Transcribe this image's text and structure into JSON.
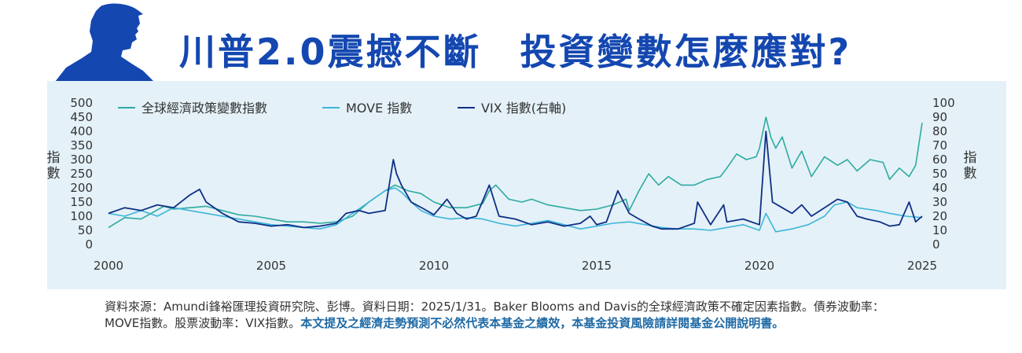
{
  "header": {
    "title": "川普2.0震撼不斷　投資變數怎麼應對?"
  },
  "footnote": {
    "source_text": "資料來源：Amundi鋒裕匯理投資研究院、彭博。資料日期：2025/1/31。Baker Blooms and Davis的全球經濟政策不確定因素指數。債券波動率：MOVE指數。股票波動率：VIX指數。",
    "disclaimer": "本文提及之經濟走勢預測不必然代表本基金之績效，本基金投資風險請詳閱基金公開說明書。"
  },
  "colors": {
    "title": "#1447b0",
    "panel": "#e4f1f8",
    "epu": "#2eaaa0",
    "move": "#3bb6d8",
    "vix": "#0f2f86",
    "highlight": "#1f6aa5"
  },
  "chart_data": {
    "type": "line",
    "x_range": [
      2000,
      2025
    ],
    "x_ticks": [
      "2000",
      "2005",
      "2010",
      "2015",
      "2020",
      "2025"
    ],
    "ylabel_left": "指數",
    "ylabel_right": "指數",
    "ylim_left": [
      0,
      500
    ],
    "ylim_right": [
      0,
      100
    ],
    "y_ticks_left": [
      "0",
      "50",
      "100",
      "150",
      "200",
      "250",
      "300",
      "350",
      "400",
      "450",
      "500"
    ],
    "y_ticks_right": [
      "0",
      "10",
      "20",
      "30",
      "40",
      "50",
      "60",
      "70",
      "80",
      "90",
      "100"
    ],
    "legend_position": "top",
    "grid": false,
    "series": [
      {
        "name": "全球經濟政策變數指數",
        "axis": "left",
        "color": "#2eaaa0",
        "x": [
          2000,
          2000.5,
          2001,
          2001.7,
          2002,
          2002.5,
          2003,
          2003.5,
          2004,
          2004.5,
          2005,
          2005.5,
          2006,
          2006.5,
          2007,
          2007.5,
          2008,
          2008.5,
          2008.8,
          2009.2,
          2009.6,
          2010,
          2010.5,
          2011,
          2011.5,
          2011.7,
          2011.9,
          2012.3,
          2012.7,
          2013,
          2013.5,
          2014,
          2014.5,
          2015,
          2015.5,
          2015.9,
          2016,
          2016.3,
          2016.6,
          2016.9,
          2017.2,
          2017.6,
          2018,
          2018.4,
          2018.8,
          2019,
          2019.3,
          2019.6,
          2019.9,
          2020,
          2020.2,
          2020.35,
          2020.5,
          2020.7,
          2021,
          2021.3,
          2021.6,
          2022,
          2022.4,
          2022.7,
          2023,
          2023.4,
          2023.8,
          2024,
          2024.3,
          2024.6,
          2024.8,
          2025
        ],
        "y": [
          60,
          95,
          90,
          135,
          125,
          130,
          135,
          120,
          105,
          100,
          90,
          80,
          80,
          75,
          80,
          100,
          150,
          190,
          210,
          190,
          180,
          150,
          130,
          130,
          145,
          190,
          210,
          160,
          150,
          160,
          140,
          130,
          120,
          125,
          140,
          160,
          120,
          190,
          250,
          210,
          240,
          210,
          210,
          230,
          240,
          270,
          320,
          300,
          310,
          340,
          450,
          380,
          340,
          380,
          270,
          330,
          240,
          310,
          280,
          300,
          260,
          300,
          290,
          230,
          270,
          240,
          280,
          430
        ]
      },
      {
        "name": "MOVE 指數",
        "axis": "left",
        "color": "#3bb6d8",
        "x": [
          2000,
          2000.5,
          2001,
          2001.5,
          2002,
          2002.5,
          2003,
          2003.5,
          2004,
          2004.5,
          2005,
          2005.5,
          2006,
          2006.5,
          2007,
          2007.5,
          2008,
          2008.5,
          2008.8,
          2009,
          2009.3,
          2009.6,
          2010,
          2010.5,
          2011,
          2011.5,
          2012,
          2012.5,
          2013,
          2013.5,
          2014,
          2014.5,
          2015,
          2015.5,
          2016,
          2016.5,
          2017,
          2017.5,
          2018,
          2018.5,
          2019,
          2019.5,
          2020,
          2020.2,
          2020.5,
          2021,
          2021.5,
          2022,
          2022.3,
          2022.7,
          2023,
          2023.3,
          2023.6,
          2024,
          2024.5,
          2025
        ],
        "y": [
          110,
          100,
          120,
          100,
          130,
          120,
          110,
          100,
          90,
          80,
          70,
          65,
          60,
          55,
          70,
          110,
          150,
          190,
          200,
          185,
          150,
          120,
          100,
          90,
          95,
          90,
          75,
          65,
          75,
          85,
          70,
          55,
          65,
          75,
          80,
          70,
          60,
          55,
          55,
          50,
          60,
          70,
          50,
          110,
          45,
          55,
          70,
          100,
          140,
          150,
          130,
          125,
          120,
          110,
          100,
          95
        ]
      },
      {
        "name": "VIX 指數(右軸)",
        "axis": "right",
        "color": "#0f2f86",
        "x": [
          2000,
          2000.5,
          2001,
          2001.5,
          2002,
          2002.5,
          2002.8,
          2003,
          2003.5,
          2004,
          2004.5,
          2005,
          2005.5,
          2006,
          2006.5,
          2007,
          2007.3,
          2007.7,
          2008,
          2008.5,
          2008.75,
          2008.85,
          2009,
          2009.3,
          2009.7,
          2010,
          2010.4,
          2010.7,
          2011,
          2011.3,
          2011.7,
          2012,
          2012.5,
          2013,
          2013.5,
          2014,
          2014.5,
          2014.8,
          2015,
          2015.3,
          2015.65,
          2016,
          2016.3,
          2016.7,
          2017,
          2017.5,
          2018,
          2018.1,
          2018.5,
          2018.9,
          2019,
          2019.5,
          2020,
          2020.2,
          2020.4,
          2020.7,
          2021,
          2021.3,
          2021.6,
          2022,
          2022.4,
          2022.7,
          2023,
          2023.3,
          2023.7,
          2024,
          2024.3,
          2024.6,
          2024.8,
          2025
        ],
        "y": [
          22,
          26,
          24,
          28,
          26,
          35,
          39,
          30,
          22,
          16,
          15,
          13,
          14,
          12,
          13,
          15,
          22,
          24,
          22,
          24,
          60,
          50,
          42,
          30,
          25,
          21,
          32,
          22,
          18,
          20,
          42,
          20,
          18,
          14,
          16,
          13,
          15,
          20,
          14,
          16,
          38,
          22,
          18,
          13,
          11,
          11,
          15,
          30,
          14,
          28,
          16,
          18,
          14,
          80,
          30,
          26,
          22,
          28,
          20,
          26,
          32,
          30,
          20,
          18,
          16,
          13,
          14,
          30,
          16,
          20
        ]
      }
    ]
  }
}
